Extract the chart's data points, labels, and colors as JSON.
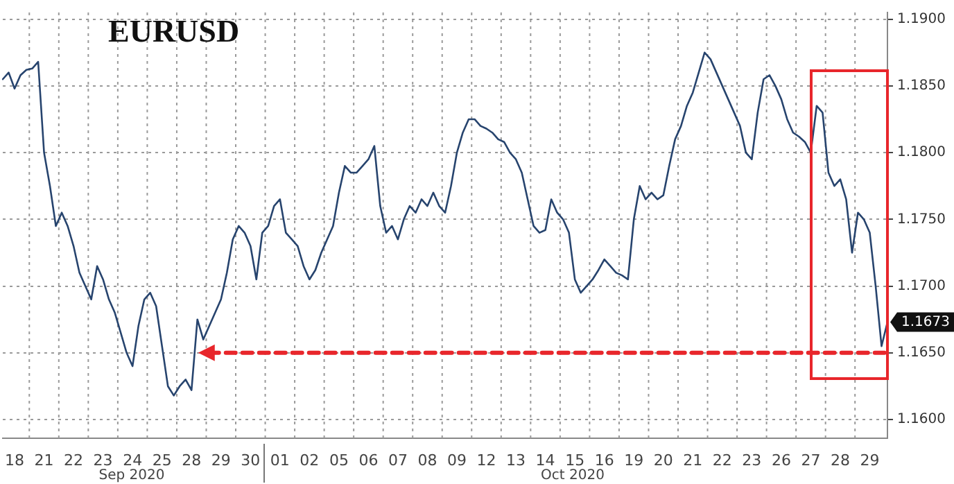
{
  "chart_data": {
    "type": "line",
    "title": "EURUSD",
    "categories": [
      null,
      null,
      "18",
      null,
      null,
      null,
      null,
      "21",
      null,
      null,
      null,
      null,
      "22",
      null,
      null,
      null,
      null,
      "23",
      null,
      null,
      null,
      null,
      "24",
      null,
      null,
      null,
      null,
      "25",
      null,
      null,
      null,
      null,
      "28",
      null,
      null,
      null,
      null,
      "29",
      null,
      null,
      null,
      null,
      "30",
      null,
      null,
      null,
      null,
      "01",
      null,
      null,
      null,
      null,
      "02",
      null,
      null,
      null,
      null,
      "05",
      null,
      null,
      null,
      null,
      "06",
      null,
      null,
      null,
      null,
      "07",
      null,
      null,
      null,
      null,
      "08",
      null,
      null,
      null,
      null,
      "09",
      null,
      null,
      null,
      null,
      "12",
      null,
      null,
      null,
      null,
      "13",
      null,
      null,
      null,
      null,
      "14",
      null,
      null,
      null,
      null,
      "15",
      null,
      null,
      null,
      null,
      "16",
      null,
      null,
      null,
      null,
      "19",
      null,
      null,
      null,
      null,
      "20",
      null,
      null,
      null,
      null,
      "21",
      null,
      null,
      null,
      null,
      "22",
      null,
      null,
      null,
      null,
      "23",
      null,
      null,
      null,
      null,
      "26",
      null,
      null,
      null,
      null,
      "27",
      null,
      null,
      null,
      null,
      "28",
      null,
      null,
      null,
      null,
      "29",
      null,
      null,
      null
    ],
    "series": [
      {
        "color": "#27446e",
        "values": [
          1.1855,
          1.186,
          1.1848,
          1.1858,
          1.1862,
          1.1863,
          1.1868,
          1.18,
          1.1775,
          1.1745,
          1.1755,
          1.1745,
          1.173,
          1.171,
          1.17,
          1.169,
          1.1715,
          1.1705,
          1.169,
          1.168,
          1.1665,
          1.165,
          1.164,
          1.167,
          1.169,
          1.1695,
          1.1685,
          1.1655,
          1.1625,
          1.1618,
          1.1625,
          1.163,
          1.1622,
          1.1675,
          1.166,
          1.167,
          1.168,
          1.169,
          1.171,
          1.1735,
          1.1745,
          1.174,
          1.173,
          1.1705,
          1.174,
          1.1745,
          1.176,
          1.1765,
          1.174,
          1.1735,
          1.173,
          1.1715,
          1.1705,
          1.1712,
          1.1725,
          1.1735,
          1.1745,
          1.177,
          1.179,
          1.1785,
          1.1785,
          1.179,
          1.1795,
          1.1805,
          1.176,
          1.174,
          1.1745,
          1.1735,
          1.175,
          1.176,
          1.1755,
          1.1765,
          1.176,
          1.177,
          1.176,
          1.1755,
          1.1775,
          1.18,
          1.1815,
          1.1825,
          1.1825,
          1.182,
          1.1818,
          1.1815,
          1.181,
          1.1808,
          1.18,
          1.1795,
          1.1785,
          1.1765,
          1.1745,
          1.174,
          1.1742,
          1.1765,
          1.1755,
          1.175,
          1.174,
          1.1705,
          1.1695,
          1.17,
          1.1705,
          1.1712,
          1.172,
          1.1715,
          1.171,
          1.1708,
          1.1705,
          1.175,
          1.1775,
          1.1765,
          1.177,
          1.1765,
          1.1768,
          1.179,
          1.181,
          1.182,
          1.1835,
          1.1845,
          1.186,
          1.1875,
          1.187,
          1.186,
          1.185,
          1.184,
          1.183,
          1.182,
          1.18,
          1.1795,
          1.183,
          1.1855,
          1.1858,
          1.185,
          1.184,
          1.1825,
          1.1815,
          1.1812,
          1.1808,
          1.18,
          1.1835,
          1.183,
          1.1785,
          1.1775,
          1.178,
          1.1765,
          1.1725,
          1.1755,
          1.175,
          1.174,
          1.17,
          1.1655,
          1.1673
        ]
      },
      {
        "type": "line",
        "color": "#e8262b",
        "line_style": "dashed",
        "values": [
          null,
          null,
          null,
          null,
          null,
          null,
          null,
          null,
          null,
          null,
          null,
          null,
          null,
          null,
          null,
          null,
          null,
          null,
          null,
          null,
          null,
          null,
          null,
          null,
          null,
          null,
          null,
          null,
          null,
          null,
          null,
          null,
          null,
          null,
          null,
          1.165,
          1.165,
          1.165,
          1.165,
          1.165,
          1.165,
          1.165,
          1.165,
          1.165,
          1.165,
          1.165,
          1.165,
          1.165,
          1.165,
          1.165,
          1.165,
          1.165,
          1.165,
          1.165,
          1.165,
          1.165,
          1.165,
          1.165,
          1.165,
          1.165,
          1.165,
          1.165,
          1.165,
          1.165,
          1.165,
          1.165,
          1.165,
          1.165,
          1.165,
          1.165,
          1.165,
          1.165,
          1.165,
          1.165,
          1.165,
          1.165,
          1.165,
          1.165,
          1.165,
          1.165,
          1.165,
          1.165,
          1.165,
          1.165,
          1.165,
          1.165,
          1.165,
          1.165,
          1.165,
          1.165,
          1.165,
          1.165,
          1.165,
          1.165,
          1.165,
          1.165,
          1.165,
          1.165,
          1.165,
          1.165,
          1.165,
          1.165,
          1.165,
          1.165,
          1.165,
          1.165,
          1.165,
          1.165,
          1.165,
          1.165,
          1.165,
          1.165,
          1.165,
          1.165,
          1.165,
          1.165,
          1.165,
          1.165,
          1.165,
          1.165,
          1.165,
          1.165,
          1.165,
          1.165,
          1.165,
          1.165,
          1.165,
          1.165,
          1.165,
          1.165,
          1.165,
          1.165,
          1.165,
          1.165,
          1.165,
          1.165,
          1.165,
          1.165,
          1.165,
          1.165,
          1.165,
          1.165,
          1.165,
          1.165,
          1.165,
          1.165,
          1.165,
          1.165,
          1.165,
          1.165,
          1.165
        ]
      }
    ],
    "ylim": [
      1.1586,
      1.1905
    ],
    "yticks": [
      {
        "value": 1.16,
        "label": "1.1600"
      },
      {
        "value": 1.165,
        "label": "1.1650"
      },
      {
        "value": 1.17,
        "label": "1.1700"
      },
      {
        "value": 1.175,
        "label": "1.1750"
      },
      {
        "value": 1.18,
        "label": "1.1800"
      },
      {
        "value": 1.185,
        "label": "1.1850"
      },
      {
        "value": 1.19,
        "label": "1.1900"
      }
    ],
    "grid": true,
    "marker": "none",
    "annotations": [
      "Sep 2020",
      "Oct 2020",
      "1.1673"
    ]
  }
}
